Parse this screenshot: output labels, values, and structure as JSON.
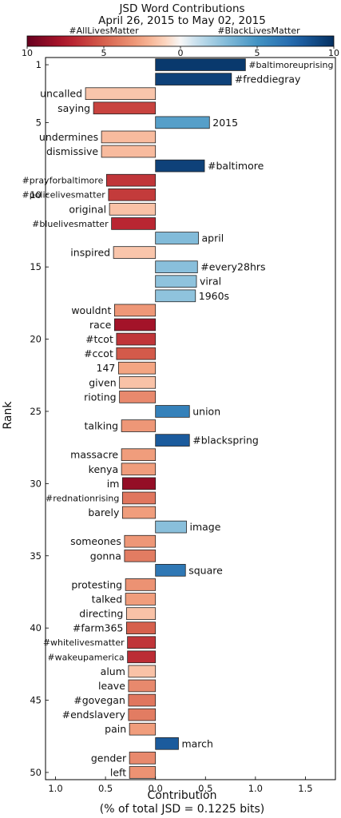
{
  "chart_data": {
    "type": "bar",
    "orientation": "horizontal",
    "title": "JSD Word Contributions",
    "subtitle": "April 26, 2015 to May 02, 2015",
    "xlabel": "Contribution",
    "xlabel2": "(% of total JSD = 0.1225 bits)",
    "ylabel": "Rank",
    "xlim": [
      -1.1,
      1.8
    ],
    "xticks": [
      {
        "value": -1.0,
        "label": "1.0"
      },
      {
        "value": -0.5,
        "label": "0.5"
      },
      {
        "value": 0.0,
        "label": "0.0"
      },
      {
        "value": 0.5,
        "label": "0.5"
      },
      {
        "value": 1.0,
        "label": "1.0"
      },
      {
        "value": 1.5,
        "label": "1.5"
      }
    ],
    "yticks": [
      {
        "rank": 1,
        "label": "1"
      },
      {
        "rank": 5,
        "label": "5"
      },
      {
        "rank": 10,
        "label": "10"
      },
      {
        "rank": 15,
        "label": "15"
      },
      {
        "rank": 20,
        "label": "20"
      },
      {
        "rank": 25,
        "label": "25"
      },
      {
        "rank": 30,
        "label": "30"
      },
      {
        "rank": 35,
        "label": "35"
      },
      {
        "rank": 40,
        "label": "40"
      },
      {
        "rank": 45,
        "label": "45"
      },
      {
        "rank": 50,
        "label": "50"
      }
    ],
    "grid": false,
    "colorbar": {
      "left_label": "#AllLivesMatter",
      "right_label": "#BlackLivesMatter",
      "range": [
        -10,
        10
      ],
      "ticks": [
        {
          "value": -10,
          "label": "10"
        },
        {
          "value": -5,
          "label": "5"
        },
        {
          "value": 0,
          "label": "0"
        },
        {
          "value": 5,
          "label": "5"
        },
        {
          "value": 10,
          "label": "10"
        }
      ],
      "colormap": "RdBu"
    },
    "bars": [
      {
        "rank": 1,
        "word": "#baltimoreuprising",
        "value": 0.9,
        "color_value": 9.6
      },
      {
        "rank": 2,
        "word": "#freddiegray",
        "value": 0.76,
        "color_value": 9.2
      },
      {
        "rank": 3,
        "word": "uncalled",
        "value": -0.7,
        "color_value": -1.5
      },
      {
        "rank": 4,
        "word": "saying",
        "value": -0.62,
        "color_value": -6.0
      },
      {
        "rank": 5,
        "word": "2015",
        "value": 0.54,
        "color_value": 4.4
      },
      {
        "rank": 6,
        "word": "undermines",
        "value": -0.54,
        "color_value": -1.8
      },
      {
        "rank": 7,
        "word": "dismissive",
        "value": -0.54,
        "color_value": -1.8
      },
      {
        "rank": 8,
        "word": "#baltimore",
        "value": 0.49,
        "color_value": 9.2
      },
      {
        "rank": 9,
        "word": "#prayforbaltimore",
        "value": -0.49,
        "color_value": -6.5
      },
      {
        "rank": 10,
        "word": "#policelivesmatter",
        "value": -0.47,
        "color_value": -6.3
      },
      {
        "rank": 11,
        "word": "original",
        "value": -0.46,
        "color_value": -1.6
      },
      {
        "rank": 12,
        "word": "#bluelivesmatter",
        "value": -0.44,
        "color_value": -7.0
      },
      {
        "rank": 13,
        "word": "april",
        "value": 0.43,
        "color_value": 3.0
      },
      {
        "rank": 14,
        "word": "inspired",
        "value": -0.42,
        "color_value": -1.5
      },
      {
        "rank": 15,
        "word": "#every28hrs",
        "value": 0.42,
        "color_value": 2.8
      },
      {
        "rank": 16,
        "word": "viral",
        "value": 0.41,
        "color_value": 2.6
      },
      {
        "rank": 17,
        "word": "1960s",
        "value": 0.4,
        "color_value": 2.6
      },
      {
        "rank": 18,
        "word": "wouldnt",
        "value": -0.41,
        "color_value": -3.0
      },
      {
        "rank": 19,
        "word": "race",
        "value": -0.41,
        "color_value": -8.0
      },
      {
        "rank": 20,
        "word": "#tcot",
        "value": -0.39,
        "color_value": -6.5
      },
      {
        "rank": 21,
        "word": "#ccot",
        "value": -0.39,
        "color_value": -5.2
      },
      {
        "rank": 22,
        "word": "147",
        "value": -0.37,
        "color_value": -2.5
      },
      {
        "rank": 23,
        "word": "given",
        "value": -0.36,
        "color_value": -1.6
      },
      {
        "rank": 24,
        "word": "rioting",
        "value": -0.36,
        "color_value": -3.5
      },
      {
        "rank": 25,
        "word": "union",
        "value": 0.34,
        "color_value": 6.0
      },
      {
        "rank": 26,
        "word": "talking",
        "value": -0.34,
        "color_value": -3.0
      },
      {
        "rank": 27,
        "word": "#blackspring",
        "value": 0.34,
        "color_value": 8.0
      },
      {
        "rank": 28,
        "word": "massacre",
        "value": -0.34,
        "color_value": -2.8
      },
      {
        "rank": 29,
        "word": "kenya",
        "value": -0.34,
        "color_value": -2.8
      },
      {
        "rank": 30,
        "word": "im",
        "value": -0.33,
        "color_value": -8.5
      },
      {
        "rank": 31,
        "word": "#rednationrising",
        "value": -0.33,
        "color_value": -4.2
      },
      {
        "rank": 32,
        "word": "barely",
        "value": -0.33,
        "color_value": -2.8
      },
      {
        "rank": 33,
        "word": "image",
        "value": 0.31,
        "color_value": 2.8
      },
      {
        "rank": 34,
        "word": "someones",
        "value": -0.31,
        "color_value": -3.0
      },
      {
        "rank": 35,
        "word": "gonna",
        "value": -0.31,
        "color_value": -4.0
      },
      {
        "rank": 36,
        "word": "square",
        "value": 0.3,
        "color_value": 6.5
      },
      {
        "rank": 37,
        "word": "protesting",
        "value": -0.3,
        "color_value": -3.2
      },
      {
        "rank": 38,
        "word": "talked",
        "value": -0.3,
        "color_value": -2.8
      },
      {
        "rank": 39,
        "word": "directing",
        "value": -0.29,
        "color_value": -1.6
      },
      {
        "rank": 40,
        "word": "#farm365",
        "value": -0.29,
        "color_value": -5.0
      },
      {
        "rank": 41,
        "word": "#whitelivesmatter",
        "value": -0.28,
        "color_value": -6.5
      },
      {
        "rank": 42,
        "word": "#wakeupamerica",
        "value": -0.28,
        "color_value": -6.8
      },
      {
        "rank": 43,
        "word": "alum",
        "value": -0.27,
        "color_value": -1.6
      },
      {
        "rank": 44,
        "word": "leave",
        "value": -0.27,
        "color_value": -3.5
      },
      {
        "rank": 45,
        "word": "#govegan",
        "value": -0.27,
        "color_value": -4.2
      },
      {
        "rank": 46,
        "word": "#endslavery",
        "value": -0.27,
        "color_value": -4.0
      },
      {
        "rank": 47,
        "word": "pain",
        "value": -0.26,
        "color_value": -2.8
      },
      {
        "rank": 48,
        "word": "march",
        "value": 0.23,
        "color_value": 8.0
      },
      {
        "rank": 49,
        "word": "gender",
        "value": -0.26,
        "color_value": -3.5
      },
      {
        "rank": 50,
        "word": "left",
        "value": -0.26,
        "color_value": -3.2
      }
    ]
  }
}
